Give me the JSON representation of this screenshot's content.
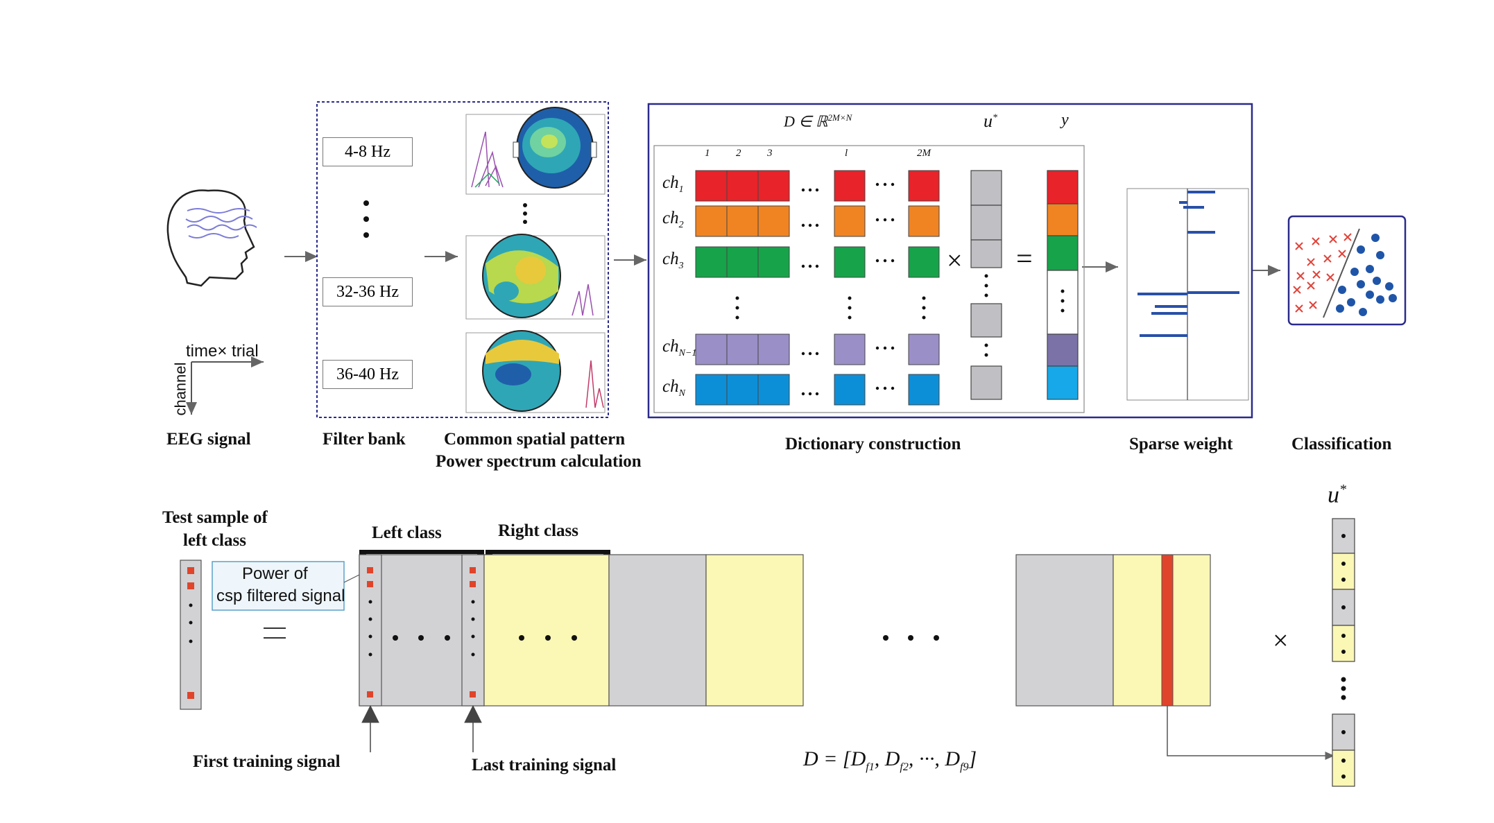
{
  "eeg": {
    "label": "EEG signal",
    "axis_x": "time× trial",
    "axis_y": "channel"
  },
  "filter_bank": {
    "label": "Filter bank",
    "bands": [
      "4-8 Hz",
      "32-36 Hz",
      "36-40 Hz"
    ]
  },
  "csp": {
    "label_line1": "Common spatial pattern",
    "label_line2": "Power spectrum calculation"
  },
  "dictionary": {
    "label": "Dictionary construction",
    "formula": "D ∈ ℝ",
    "formula_sup": "2M×N",
    "u_label": "u",
    "u_sup": "*",
    "y_label": "y",
    "column_headers": [
      "1",
      "2",
      "3",
      "l",
      "2M"
    ],
    "rows": [
      {
        "name": "ch",
        "sub": "1",
        "color": "#e8232a"
      },
      {
        "name": "ch",
        "sub": "2",
        "color": "#f08423"
      },
      {
        "name": "ch",
        "sub": "3",
        "color": "#17a34a"
      },
      {
        "name": "ch",
        "sub": "N−1",
        "color": "#9b8fc8"
      },
      {
        "name": "ch",
        "sub": "N",
        "color": "#0d8fd8"
      }
    ],
    "times": "×",
    "equals": "="
  },
  "sparse_weight": {
    "label": "Sparse weight"
  },
  "classification": {
    "label": "Classification"
  },
  "bottom": {
    "test_sample_line1": "Test sample of",
    "test_sample_line2": "left class",
    "power_line1": "Power of",
    "power_line2": "csp filtered signal",
    "left_class": "Left class",
    "right_class": "Right class",
    "first_training": "First training signal",
    "last_training": "Last training signal",
    "u_label": "u",
    "u_sup": "*",
    "times": "×",
    "formula": "D = [D",
    "formula_subs": [
      "f1",
      "f2",
      "f9"
    ]
  },
  "colors": {
    "frame_blue": "#2a2a8c",
    "gray_block": "#d2d2d4",
    "yellow_block": "#fbf7b5",
    "red_marker": "#e0442a",
    "sparse_bar": "#2850a8"
  }
}
